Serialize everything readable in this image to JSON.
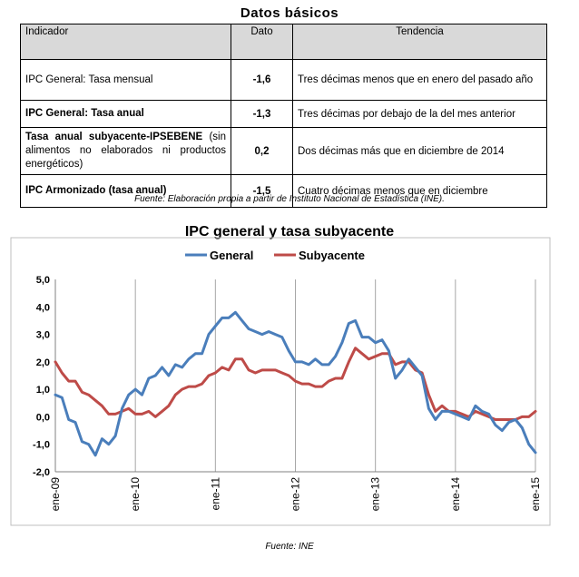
{
  "table": {
    "title": "Datos básicos",
    "headers": [
      "Indicador",
      "Dato",
      "Tendencia"
    ],
    "rows": [
      {
        "indicator": "IPC General: Tasa mensual",
        "value": "-1,6",
        "trend": "Tres décimas menos que en enero del pasado año"
      },
      {
        "indicator": "IPC General: Tasa anual",
        "value": "-1,3",
        "trend": "Tres décimas por debajo de la del mes anterior"
      },
      {
        "indicator": "Tasa anual subyacente-IPSEBENE (sin alimentos no elaborados ni productos energéticos)",
        "indicator_bold": "Tasa anual subyacente-IPSEBENE",
        "indicator_rest": " (sin alimentos no elaborados ni productos energéticos)",
        "value": "0,2",
        "trend": "Dos décimas más que en diciembre de 2014"
      },
      {
        "indicator": "IPC Armonizado (tasa anual)",
        "value": "-1,5",
        "trend": "Cuatro décimas menos que en diciembre"
      }
    ],
    "source": "Fuente: Elaboración propia a partir de Instituto Nacional de Estadística (INE)."
  },
  "chart_data": {
    "type": "line",
    "title": "IPC general y tasa subyacente",
    "xlabel": "",
    "ylabel": "",
    "ylim": [
      -2.0,
      5.0
    ],
    "ytick_labels": [
      "5,0",
      "4,0",
      "3,0",
      "2,0",
      "1,0",
      "0,0",
      "-1,0",
      "-2,0"
    ],
    "ytick_values": [
      5,
      4,
      3,
      2,
      1,
      0,
      -1,
      -2
    ],
    "x_tick_labels": [
      "ene-09",
      "ene-10",
      "ene-11",
      "ene-12",
      "ene-13",
      "ene-14",
      "ene-15"
    ],
    "x_tick_index": [
      0,
      12,
      24,
      36,
      48,
      60,
      72
    ],
    "legend": [
      "General",
      "Subyacente"
    ],
    "colors": {
      "General": "#4a7ebb",
      "Subyacente": "#be4b48"
    },
    "series": [
      {
        "name": "General",
        "values": [
          0.8,
          0.7,
          -0.1,
          -0.2,
          -0.9,
          -1.0,
          -1.4,
          -0.8,
          -1.0,
          -0.7,
          0.3,
          0.8,
          1.0,
          0.8,
          1.4,
          1.5,
          1.8,
          1.5,
          1.9,
          1.8,
          2.1,
          2.3,
          2.3,
          3.0,
          3.3,
          3.6,
          3.6,
          3.8,
          3.5,
          3.2,
          3.1,
          3.0,
          3.1,
          3.0,
          2.9,
          2.4,
          2.0,
          2.0,
          1.9,
          2.1,
          1.9,
          1.9,
          2.2,
          2.7,
          3.4,
          3.5,
          2.9,
          2.9,
          2.7,
          2.8,
          2.4,
          1.4,
          1.7,
          2.1,
          1.8,
          1.5,
          0.3,
          -0.1,
          0.2,
          0.2,
          0.1,
          0.0,
          -0.1,
          0.4,
          0.2,
          0.1,
          -0.3,
          -0.5,
          -0.2,
          -0.1,
          -0.4,
          -1.0,
          -1.3
        ]
      },
      {
        "name": "Subyacente",
        "values": [
          2.0,
          1.6,
          1.3,
          1.3,
          0.9,
          0.8,
          0.6,
          0.4,
          0.1,
          0.1,
          0.2,
          0.3,
          0.1,
          0.1,
          0.2,
          0.0,
          0.2,
          0.4,
          0.8,
          1.0,
          1.1,
          1.1,
          1.2,
          1.5,
          1.6,
          1.8,
          1.7,
          2.1,
          2.1,
          1.7,
          1.6,
          1.7,
          1.7,
          1.7,
          1.6,
          1.5,
          1.3,
          1.2,
          1.2,
          1.1,
          1.1,
          1.3,
          1.4,
          1.4,
          2.0,
          2.5,
          2.3,
          2.1,
          2.2,
          2.3,
          2.3,
          1.9,
          2.0,
          2.0,
          1.7,
          1.6,
          0.8,
          0.2,
          0.4,
          0.2,
          0.2,
          0.1,
          0.0,
          0.2,
          0.1,
          0.0,
          -0.1,
          -0.1,
          -0.1,
          -0.1,
          0.0,
          0.0,
          0.2
        ]
      }
    ]
  },
  "chart_source": "Fuente: INE"
}
